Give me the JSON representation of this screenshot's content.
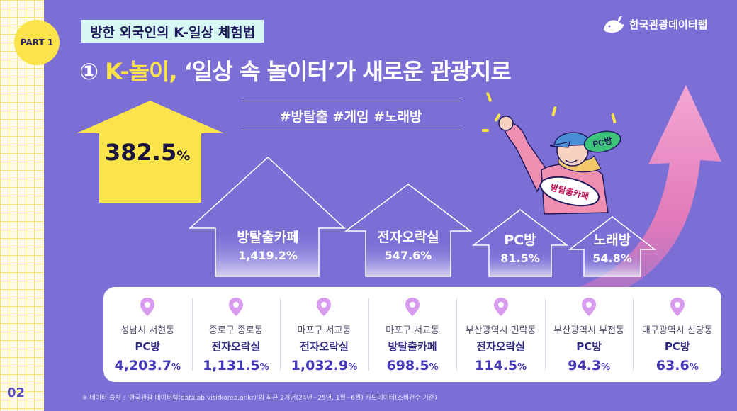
{
  "part_badge": "PART 1",
  "page_number": "02",
  "subtitle": "방한 외국인의 K-일상 체험법",
  "title": {
    "number": "①",
    "highlight": "K-놀이,",
    "rest": "‘일상 속 놀이터’가 새로운 관광지로"
  },
  "logo_text": "한국관광데이터랩",
  "hashtags": "#방탈출   #게임   #노래방",
  "headline_value": {
    "value": "382.5",
    "unit": "%"
  },
  "categories": [
    {
      "name": "방탈출카페",
      "value": "1,419.2%"
    },
    {
      "name": "전자오락실",
      "value": "547.6%"
    },
    {
      "name": "PC방",
      "value": "81.5%"
    },
    {
      "name": "노래방",
      "value": "54.8%"
    }
  ],
  "illustration": {
    "bubble": "PC방",
    "sign": "방탈출카페"
  },
  "locations": [
    {
      "area": "성남시 서현동",
      "type": "PC방",
      "value": "4,203.7",
      "unit": "%"
    },
    {
      "area": "종로구 종로동",
      "type": "전자오락실",
      "value": "1,131.5",
      "unit": "%"
    },
    {
      "area": "마포구 서교동",
      "type": "전자오락실",
      "value": "1,032.9",
      "unit": "%"
    },
    {
      "area": "마포구 서교동",
      "type": "방탈출카페",
      "value": "698.5",
      "unit": "%"
    },
    {
      "area": "부산광역시 민락동",
      "type": "전자오락실",
      "value": "114.5",
      "unit": "%"
    },
    {
      "area": "부산광역시 부전동",
      "type": "PC방",
      "value": "94.3",
      "unit": "%"
    },
    {
      "area": "대구광역시 신당동",
      "type": "PC방",
      "value": "63.6",
      "unit": "%"
    }
  ],
  "source": "※ 데이터 출처 : ‘한국관광 데이터랩(datalab.visitkorea.or.kr)’의 최근 2개년(24년~25년, 1월~6월) 카드데이터(소비건수 기준)",
  "colors": {
    "background": "#7b6fd6",
    "accent": "#fbe34a",
    "pink": "#ee7bb6",
    "text_dark": "#2e2a80"
  }
}
